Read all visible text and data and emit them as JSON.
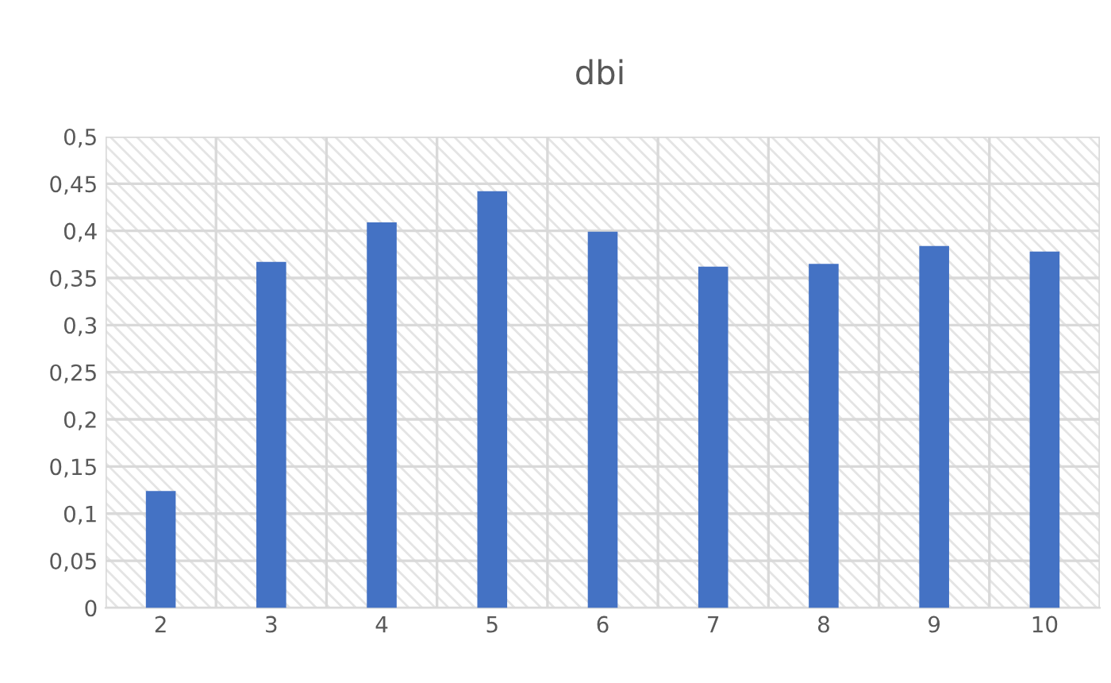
{
  "chart_data": {
    "type": "bar",
    "title": "dbi",
    "categories": [
      "2",
      "3",
      "4",
      "5",
      "6",
      "7",
      "8",
      "9",
      "10"
    ],
    "values": [
      0.124,
      0.367,
      0.409,
      0.442,
      0.399,
      0.362,
      0.365,
      0.384,
      0.378
    ],
    "color": "#4472c4",
    "ylim": [
      0,
      0.5
    ],
    "yticks": [
      0,
      {
        "value": 0.05,
        "label": "0,05"
      },
      {
        "value": 0.1,
        "label": "0,1"
      },
      {
        "value": 0.15,
        "label": "0,15"
      },
      {
        "value": 0.2,
        "label": "0,2"
      },
      {
        "value": 0.25,
        "label": "0,25"
      },
      {
        "value": 0.3,
        "label": "0,3"
      },
      {
        "value": 0.35,
        "label": "0,35"
      },
      {
        "value": 0.4,
        "label": "0,4"
      },
      {
        "value": 0.45,
        "label": "0,45"
      },
      {
        "value": 0.5,
        "label": "0,5"
      }
    ],
    "grid": true,
    "legend": false
  }
}
